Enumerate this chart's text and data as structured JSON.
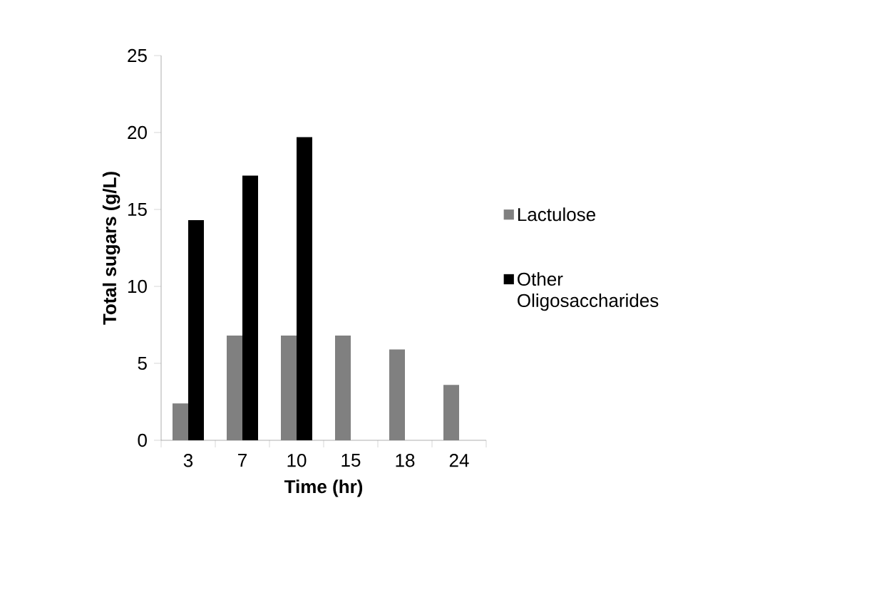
{
  "chart_data": {
    "type": "bar",
    "xlabel": "Time (hr)",
    "ylabel": "Total sugars (g/L)",
    "categories": [
      "3",
      "7",
      "10",
      "15",
      "18",
      "24"
    ],
    "series": [
      {
        "name": "Lactulose",
        "color": "#808080",
        "values": [
          2.4,
          6.8,
          6.8,
          6.8,
          5.9,
          3.6
        ]
      },
      {
        "name": "Other Oligosaccharides",
        "color": "#000000",
        "values": [
          14.3,
          17.2,
          19.7,
          null,
          null,
          null
        ]
      }
    ],
    "ylim": [
      0,
      25
    ],
    "yticks": [
      0,
      5,
      10,
      15,
      20,
      25
    ],
    "grid": false,
    "legend": "right"
  }
}
